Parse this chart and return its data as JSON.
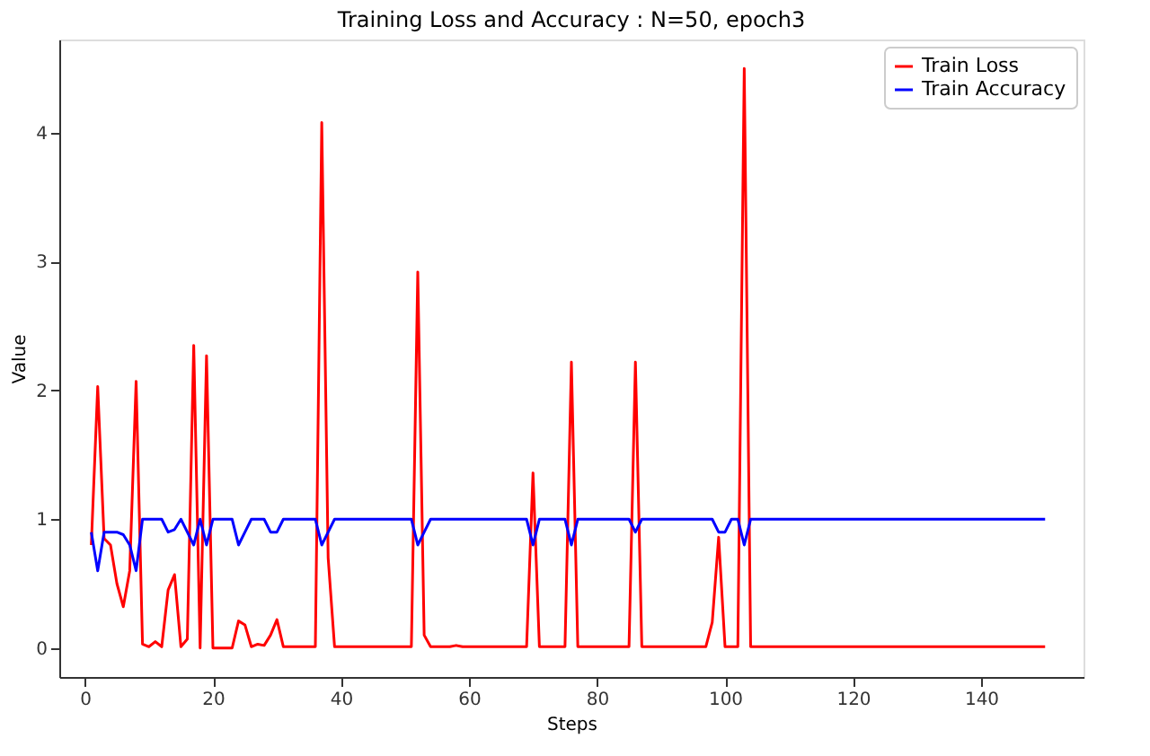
{
  "chart_data": {
    "type": "line",
    "title": "Training Loss and Accuracy : N=50, epoch3",
    "xlabel": "Steps",
    "ylabel": "Value",
    "xlim": [
      -4,
      156
    ],
    "xticks": [
      0,
      20,
      40,
      60,
      80,
      100,
      120,
      140
    ],
    "ylim": [
      -0.225,
      4.725
    ],
    "yticks": [
      0,
      1,
      2,
      3,
      4
    ],
    "grid": false,
    "legend": "top right",
    "marker": "none",
    "line_style": "solid",
    "series": [
      {
        "name": "Train Loss",
        "color": "#ff0000",
        "x": [
          1,
          2,
          3,
          4,
          5,
          6,
          7,
          8,
          9,
          10,
          11,
          12,
          13,
          14,
          15,
          16,
          17,
          18,
          19,
          20,
          23,
          24,
          25,
          26,
          27,
          28,
          29,
          30,
          31,
          36,
          37,
          38,
          39,
          51,
          52,
          53,
          54,
          57,
          58,
          59,
          69,
          70,
          71,
          75,
          76,
          77,
          85,
          86,
          87,
          97,
          98,
          99,
          100,
          102,
          103,
          104,
          150
        ],
        "values": [
          0.8,
          2.03,
          0.85,
          0.8,
          0.5,
          0.32,
          0.6,
          2.07,
          0.03,
          0.01,
          0.05,
          0.01,
          0.45,
          0.57,
          0.01,
          0.07,
          2.35,
          0.0,
          2.27,
          0.0,
          0.0,
          0.21,
          0.18,
          0.01,
          0.03,
          0.02,
          0.1,
          0.22,
          0.01,
          0.01,
          4.08,
          0.7,
          0.01,
          0.01,
          2.92,
          0.1,
          0.01,
          0.01,
          0.02,
          0.01,
          0.01,
          1.36,
          0.01,
          0.01,
          2.22,
          0.01,
          0.01,
          2.22,
          0.01,
          0.01,
          0.2,
          0.86,
          0.01,
          0.01,
          4.5,
          0.01,
          0.01
        ]
      },
      {
        "name": "Train Accuracy",
        "color": "#0000ff",
        "x": [
          1,
          2,
          3,
          5,
          6,
          7,
          8,
          9,
          12,
          13,
          14,
          15,
          16,
          17,
          18,
          19,
          20,
          23,
          24,
          25,
          26,
          28,
          29,
          30,
          31,
          36,
          37,
          38,
          39,
          51,
          52,
          53,
          54,
          69,
          70,
          71,
          75,
          76,
          77,
          85,
          86,
          87,
          98,
          99,
          100,
          101,
          102,
          103,
          104,
          150
        ],
        "values": [
          0.9,
          0.6,
          0.9,
          0.9,
          0.88,
          0.8,
          0.6,
          1,
          1,
          0.9,
          0.92,
          1,
          0.9,
          0.8,
          1,
          0.8,
          1,
          1,
          0.8,
          0.9,
          1,
          1,
          0.9,
          0.9,
          1,
          1,
          0.8,
          0.9,
          1,
          1,
          0.8,
          0.9,
          1,
          1,
          0.8,
          1,
          1,
          0.8,
          1,
          1,
          0.9,
          1,
          1,
          0.9,
          0.9,
          1,
          1,
          0.8,
          1,
          1
        ]
      }
    ]
  }
}
